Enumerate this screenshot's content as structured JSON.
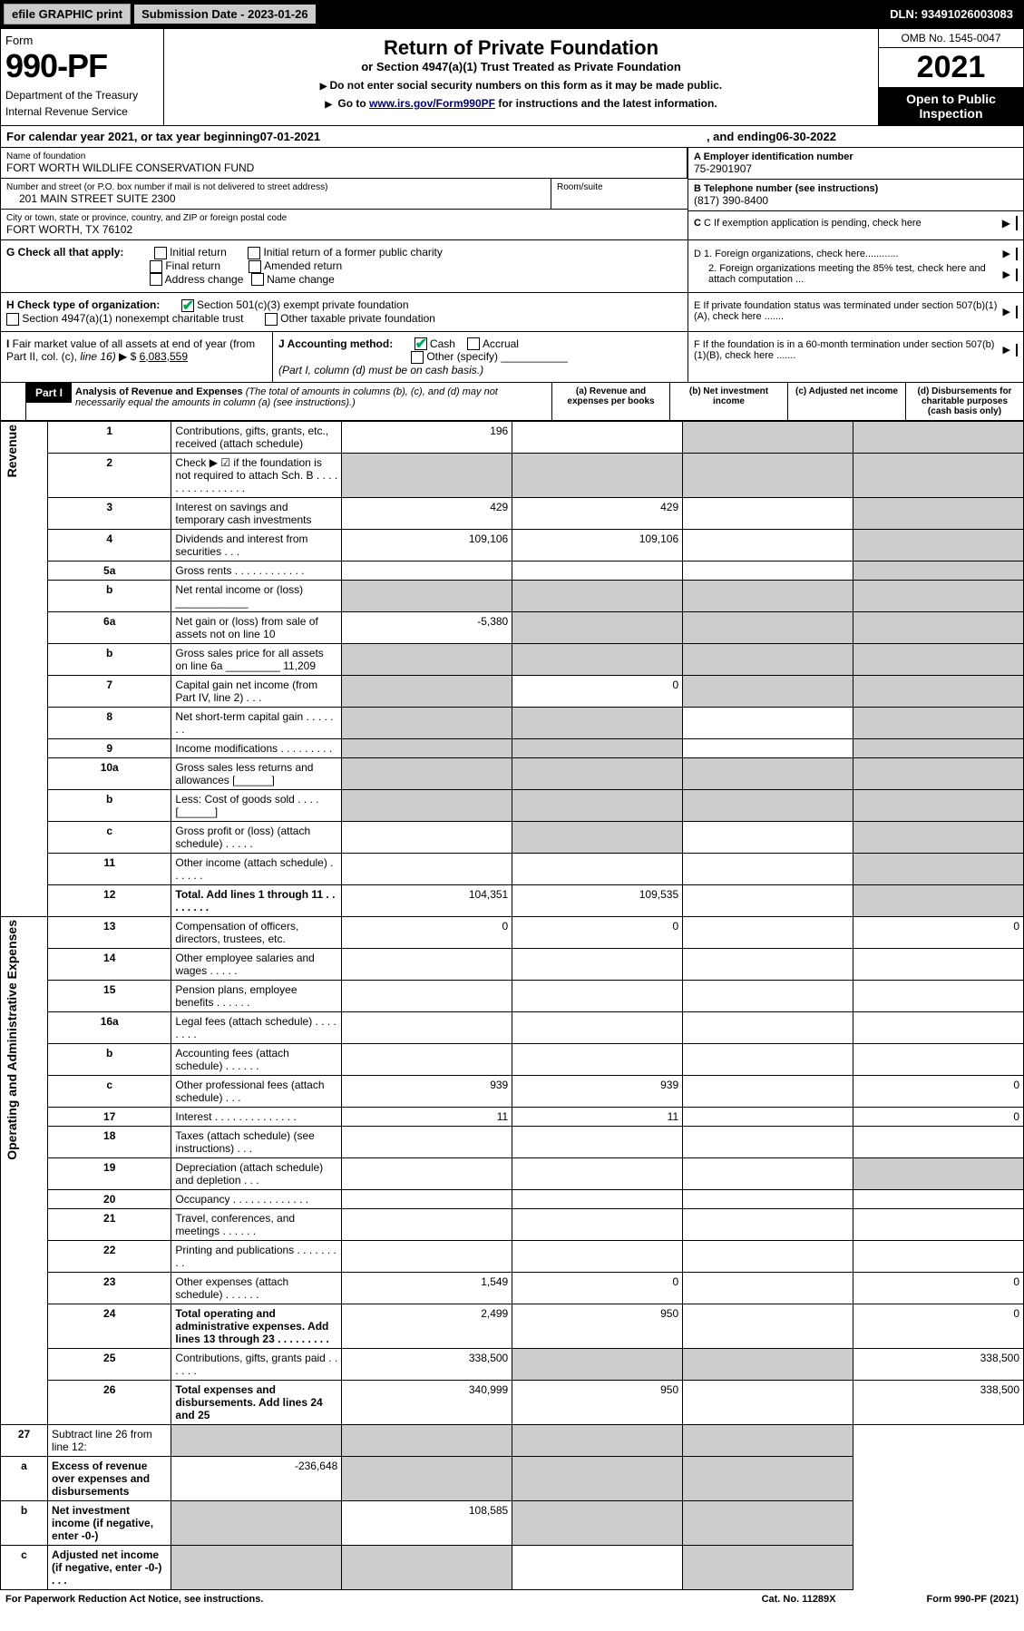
{
  "topbar": {
    "efile": "efile GRAPHIC print",
    "submission": "Submission Date - 2023-01-26",
    "dln": "DLN: 93491026003083"
  },
  "header": {
    "form_word": "Form",
    "form_num": "990-PF",
    "dept": "Department of the Treasury",
    "irs": "Internal Revenue Service",
    "title": "Return of Private Foundation",
    "subtitle": "or Section 4947(a)(1) Trust Treated as Private Foundation",
    "note1": "Do not enter social security numbers on this form as it may be made public.",
    "note2_pre": "Go to ",
    "note2_link": "www.irs.gov/Form990PF",
    "note2_post": " for instructions and the latest information.",
    "omb": "OMB No. 1545-0047",
    "year": "2021",
    "open": "Open to Public Inspection"
  },
  "cal": {
    "pre": "For calendar year 2021, or tax year beginning ",
    "begin": "07-01-2021",
    "mid": ", and ending ",
    "end": "06-30-2022"
  },
  "foundation": {
    "name_label": "Name of foundation",
    "name": "FORT WORTH WILDLIFE CONSERVATION FUND",
    "addr_label": "Number and street (or P.O. box number if mail is not delivered to street address)",
    "addr": "201 MAIN STREET SUITE 2300",
    "room_label": "Room/suite",
    "city_label": "City or town, state or province, country, and ZIP or foreign postal code",
    "city": "FORT WORTH, TX  76102",
    "ein_label": "A Employer identification number",
    "ein": "75-2901907",
    "tel_label": "B Telephone number (see instructions)",
    "tel": "(817) 390-8400",
    "c_label": "C If exemption application is pending, check here"
  },
  "g": {
    "label": "G Check all that apply:",
    "o1": "Initial return",
    "o2": "Initial return of a former public charity",
    "o3": "Final return",
    "o4": "Amended return",
    "o5": "Address change",
    "o6": "Name change"
  },
  "d": {
    "d1": "D 1. Foreign organizations, check here............",
    "d2": "2. Foreign organizations meeting the 85% test, check here and attach computation ..."
  },
  "h": {
    "label": "H Check type of organization:",
    "o1": "Section 501(c)(3) exempt private foundation",
    "o2": "Section 4947(a)(1) nonexempt charitable trust",
    "o3": "Other taxable private foundation"
  },
  "e": {
    "label": "E  If private foundation status was terminated under section 507(b)(1)(A), check here ......."
  },
  "i": {
    "label": "I Fair market value of all assets at end of year (from Part II, col. (c), line 16)",
    "value": "6,083,559"
  },
  "j": {
    "label": "J Accounting method:",
    "o1": "Cash",
    "o2": "Accrual",
    "o3": "Other (specify)",
    "note": "(Part I, column (d) must be on cash basis.)"
  },
  "f": {
    "label": "F  If the foundation is in a 60-month termination under section 507(b)(1)(B), check here ......."
  },
  "part1": {
    "label": "Part I",
    "title": "Analysis of Revenue and Expenses",
    "note": " (The total of amounts in columns (b), (c), and (d) may not necessarily equal the amounts in column (a) (see instructions).)",
    "cols": {
      "a": "(a)   Revenue and expenses per books",
      "b": "(b)   Net investment income",
      "c": "(c)   Adjusted net income",
      "d": "(d)   Disbursements for charitable purposes (cash basis only)"
    }
  },
  "side": {
    "rev": "Revenue",
    "exp": "Operating and Administrative Expenses"
  },
  "rows": [
    {
      "n": "1",
      "d": "Contributions, gifts, grants, etc., received (attach schedule)",
      "a": "196",
      "b": "",
      "c": "",
      "cg": true,
      "dg": true
    },
    {
      "n": "2",
      "d": "Check ▶ ☑ if the foundation is not required to attach Sch. B   .  .  .  .  .  .  .  .  .  .  .  .  .  .  .  .",
      "ag": true,
      "bg": true,
      "cg": true,
      "dg": true
    },
    {
      "n": "3",
      "d": "Interest on savings and temporary cash investments",
      "a": "429",
      "b": "429",
      "dg": true
    },
    {
      "n": "4",
      "d": "Dividends and interest from securities   .   .   .",
      "a": "109,106",
      "b": "109,106",
      "dg": true
    },
    {
      "n": "5a",
      "d": "Gross rents   .   .   .   .   .   .   .   .   .   .   .   .",
      "dg": true
    },
    {
      "n": "b",
      "d": "Net rental income or (loss)  ____________",
      "ag": true,
      "bg": true,
      "cg": true,
      "dg": true
    },
    {
      "n": "6a",
      "d": "Net gain or (loss) from sale of assets not on line 10",
      "a": "-5,380",
      "bg": true,
      "cg": true,
      "dg": true
    },
    {
      "n": "b",
      "d": "Gross sales price for all assets on line 6a _________ 11,209",
      "ag": true,
      "bg": true,
      "cg": true,
      "dg": true
    },
    {
      "n": "7",
      "d": "Capital gain net income (from Part IV, line 2)   .   .   .",
      "ag": true,
      "b": "0",
      "cg": true,
      "dg": true
    },
    {
      "n": "8",
      "d": "Net short-term capital gain   .   .   .   .   .   .   .",
      "ag": true,
      "bg": true,
      "dg": true
    },
    {
      "n": "9",
      "d": "Income modifications  .   .   .   .   .   .   .   .   .",
      "ag": true,
      "bg": true,
      "dg": true
    },
    {
      "n": "10a",
      "d": "Gross sales less returns and allowances  [______]",
      "ag": true,
      "bg": true,
      "cg": true,
      "dg": true
    },
    {
      "n": "b",
      "d": "Less: Cost of goods sold   .   .   .   .   [______]",
      "ag": true,
      "bg": true,
      "cg": true,
      "dg": true
    },
    {
      "n": "c",
      "d": "Gross profit or (loss) (attach schedule)   .   .   .   .   .",
      "bg": true,
      "dg": true
    },
    {
      "n": "11",
      "d": "Other income (attach schedule)   .   .   .   .   .   .",
      "dg": true
    },
    {
      "n": "12",
      "d": "Total. Add lines 1 through 11   .   .   .   .   .   .   .   .",
      "a": "104,351",
      "b": "109,535",
      "dg": true,
      "bold": true
    }
  ],
  "exp_rows": [
    {
      "n": "13",
      "d": "Compensation of officers, directors, trustees, etc.",
      "a": "0",
      "b": "0",
      "dv": "0"
    },
    {
      "n": "14",
      "d": "Other employee salaries and wages   .   .   .   .   ."
    },
    {
      "n": "15",
      "d": "Pension plans, employee benefits  .   .   .   .   .   ."
    },
    {
      "n": "16a",
      "d": "Legal fees (attach schedule)  .   .   .   .   .   .   .   ."
    },
    {
      "n": "b",
      "d": "Accounting fees (attach schedule)  .   .   .   .   .   ."
    },
    {
      "n": "c",
      "d": "Other professional fees (attach schedule)   .   .   .",
      "a": "939",
      "b": "939",
      "dv": "0"
    },
    {
      "n": "17",
      "d": "Interest  .   .   .   .   .   .   .   .   .   .   .   .   .   .",
      "a": "11",
      "b": "11",
      "dv": "0"
    },
    {
      "n": "18",
      "d": "Taxes (attach schedule) (see instructions)   .   .   ."
    },
    {
      "n": "19",
      "d": "Depreciation (attach schedule) and depletion   .   .   .",
      "dg": true
    },
    {
      "n": "20",
      "d": "Occupancy  .   .   .   .   .   .   .   .   .   .   .   .   ."
    },
    {
      "n": "21",
      "d": "Travel, conferences, and meetings  .   .   .   .   .   ."
    },
    {
      "n": "22",
      "d": "Printing and publications  .   .   .   .   .   .   .   .   ."
    },
    {
      "n": "23",
      "d": "Other expenses (attach schedule)  .   .   .   .   .   .",
      "a": "1,549",
      "b": "0",
      "dv": "0"
    },
    {
      "n": "24",
      "d": "Total operating and administrative expenses. Add lines 13 through 23   .   .   .   .   .   .   .   .   .",
      "a": "2,499",
      "b": "950",
      "dv": "0",
      "bold": true
    },
    {
      "n": "25",
      "d": "Contributions, gifts, grants paid   .   .   .   .   .   .",
      "a": "338,500",
      "bg": true,
      "cg": true,
      "dv": "338,500"
    },
    {
      "n": "26",
      "d": "Total expenses and disbursements. Add lines 24 and 25",
      "a": "340,999",
      "b": "950",
      "dv": "338,500",
      "bold": true
    }
  ],
  "net_rows": [
    {
      "n": "27",
      "d": "Subtract line 26 from line 12:",
      "ag": true,
      "bg": true,
      "cg": true,
      "dg": true
    },
    {
      "n": "a",
      "d": "Excess of revenue over expenses and disbursements",
      "a": "-236,648",
      "bg": true,
      "cg": true,
      "dg": true,
      "bold": true
    },
    {
      "n": "b",
      "d": "Net investment income (if negative, enter -0-)",
      "ag": true,
      "b": "108,585",
      "cg": true,
      "dg": true,
      "bold": true
    },
    {
      "n": "c",
      "d": "Adjusted net income (if negative, enter -0-)   .   .   .",
      "ag": true,
      "bg": true,
      "dg": true,
      "bold": true
    }
  ],
  "footer": {
    "left": "For Paperwork Reduction Act Notice, see instructions.",
    "mid": "Cat. No. 11289X",
    "right": "Form 990-PF (2021)"
  }
}
